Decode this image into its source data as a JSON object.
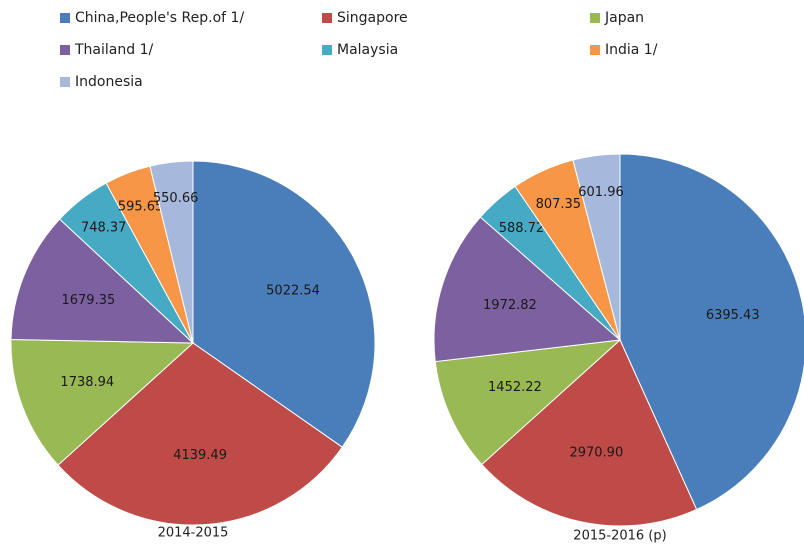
{
  "legend": {
    "names": [
      "China,People's Rep.of 1/",
      "Singapore",
      "Japan",
      "Thailand  1/",
      "Malaysia",
      "India  1/",
      "Indonesia"
    ],
    "colors": [
      "#4a7ebb",
      "#be4b48",
      "#98b954",
      "#7d60a0",
      "#46aac5",
      "#f79646",
      "#a6b9dd"
    ]
  },
  "chart_data": [
    {
      "type": "pie",
      "title": "2014-2015",
      "values": [
        5022.54,
        4139.49,
        1738.94,
        1679.35,
        748.37,
        595.65,
        550.66
      ],
      "value_labels": [
        "5022.54",
        "4139.49",
        "1738.94",
        "1679.35",
        "748.37",
        "595.65",
        "550.66"
      ]
    },
    {
      "type": "pie",
      "title": "2015-2016 (p)",
      "values": [
        6395.43,
        2970.9,
        1452.22,
        1972.82,
        588.72,
        807.35,
        601.96
      ],
      "value_labels": [
        "6395.43",
        "2970.90",
        "1452.22",
        "1972.82",
        "588.72",
        "807.35",
        "601.96"
      ]
    }
  ]
}
